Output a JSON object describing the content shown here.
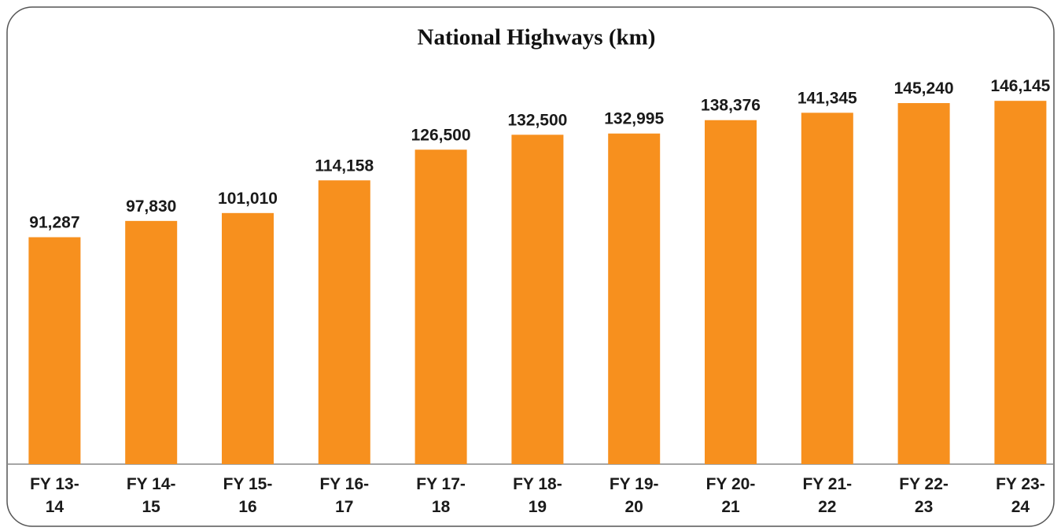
{
  "chart_data": {
    "type": "bar",
    "title": "National Highways (km)",
    "categories": [
      "FY 13-14",
      "FY 14-15",
      "FY 15-16",
      "FY 16-17",
      "FY 17-18",
      "FY 18-19",
      "FY 19-20",
      "FY 20-21",
      "FY 21-22",
      "FY 22-23",
      "FY 23-24"
    ],
    "values": [
      91287,
      97830,
      101010,
      114158,
      126500,
      132500,
      132995,
      138376,
      141345,
      145240,
      146145
    ],
    "value_labels": [
      "91,287",
      "97,830",
      "101,010",
      "114,158",
      "126,500",
      "132,500",
      "132,995",
      "138,376",
      "141,345",
      "145,240",
      "146,145"
    ],
    "color": "#f7901e",
    "ylim": [
      0,
      150000
    ]
  }
}
